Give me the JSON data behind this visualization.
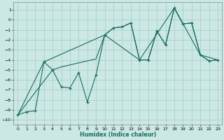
{
  "xlabel": "Humidex (Indice chaleur)",
  "bg_color": "#cbe8e4",
  "grid_color": "#aacfcc",
  "line_color": "#1a6b60",
  "xlim": [
    -0.5,
    23.5
  ],
  "ylim": [
    -10.5,
    1.8
  ],
  "yticks": [
    1,
    0,
    -1,
    -2,
    -3,
    -4,
    -5,
    -6,
    -7,
    -8,
    -9,
    -10
  ],
  "xticks": [
    0,
    1,
    2,
    3,
    4,
    5,
    6,
    7,
    8,
    9,
    10,
    11,
    12,
    13,
    14,
    15,
    16,
    17,
    18,
    19,
    20,
    21,
    22,
    23
  ],
  "line1_x": [
    0,
    1,
    2,
    3,
    4,
    5,
    6,
    7,
    8,
    9,
    10,
    11,
    12,
    13,
    14,
    15,
    16,
    17,
    18,
    19,
    20,
    21,
    22,
    23
  ],
  "line1_y": [
    -9.5,
    -9.2,
    -9.1,
    -4.2,
    -5.0,
    -6.7,
    -6.8,
    -5.3,
    -8.2,
    -5.5,
    -1.5,
    -0.8,
    -0.7,
    -0.3,
    -4.0,
    -4.0,
    -1.1,
    -2.5,
    1.2,
    -0.4,
    -0.3,
    -3.5,
    -4.1,
    -4.0
  ],
  "line2_x": [
    0,
    3,
    10,
    14,
    18,
    21,
    23
  ],
  "line2_y": [
    -9.5,
    -4.2,
    -1.5,
    -4.0,
    1.2,
    -3.5,
    -4.0
  ],
  "line3_x": [
    0,
    4,
    5,
    6,
    7,
    8,
    9,
    10,
    11,
    12,
    13,
    14,
    15,
    16,
    17,
    18,
    19,
    20,
    21,
    22,
    23
  ],
  "line3_y": [
    -9.5,
    -5.0,
    -4.7,
    -4.5,
    -4.3,
    -4.1,
    -3.9,
    -1.5,
    -0.8,
    -0.7,
    -0.3,
    -4.0,
    -4.0,
    -1.1,
    -2.5,
    1.2,
    -0.4,
    -0.3,
    -3.5,
    -4.1,
    -4.0
  ]
}
